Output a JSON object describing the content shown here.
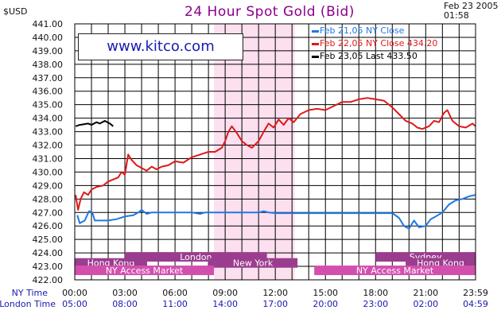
{
  "header": {
    "title": "24 Hour Spot Gold (Bid)",
    "unit": "$USD",
    "date": "Feb 23 2005",
    "time": "01:58"
  },
  "site": "www.kitco.com",
  "chart_data": {
    "type": "line",
    "title": "24 Hour Spot Gold (Bid)",
    "ylabel": "$USD",
    "ylim": [
      422.0,
      441.0
    ],
    "y_ticks": [
      "441.00",
      "440.00",
      "439.00",
      "438.00",
      "437.00",
      "436.00",
      "435.00",
      "434.00",
      "433.00",
      "432.00",
      "431.00",
      "430.00",
      "429.00",
      "428.00",
      "427.00",
      "426.00",
      "425.00",
      "424.00",
      "423.00",
      "422.00"
    ],
    "x_ticks": {
      "row_labels": [
        "NY Time",
        "London Time"
      ],
      "ny": [
        "00:00",
        "03:00",
        "06:00",
        "09:00",
        "12:00",
        "15:00",
        "18:00",
        "21:00",
        "23:59"
      ],
      "london": [
        "05:00",
        "08:00",
        "11:00",
        "14:00",
        "17:00",
        "20:00",
        "23:00",
        "02:00",
        "04:59"
      ],
      "hours": [
        0,
        3,
        6,
        9,
        12,
        15,
        18,
        21,
        23.983
      ]
    },
    "grid": true,
    "shaded_hours": [
      8.33,
      13.17
    ],
    "series": [
      {
        "name": "Feb 21,05 NY Close",
        "legend_label": "Feb 21,05  NY  Close",
        "color": "#1e78e6",
        "points": [
          [
            0.15,
            426.8
          ],
          [
            0.3,
            426.2
          ],
          [
            0.6,
            426.4
          ],
          [
            0.85,
            427.1
          ],
          [
            1.05,
            427.0
          ],
          [
            1.2,
            426.4
          ],
          [
            1.5,
            426.4
          ],
          [
            2.0,
            426.4
          ],
          [
            2.5,
            426.5
          ],
          [
            3.0,
            426.7
          ],
          [
            3.5,
            426.8
          ],
          [
            3.8,
            427.0
          ],
          [
            4.0,
            427.2
          ],
          [
            4.3,
            426.9
          ],
          [
            4.6,
            427.0
          ],
          [
            5.0,
            427.0
          ],
          [
            5.5,
            427.0
          ],
          [
            6.0,
            427.0
          ],
          [
            6.5,
            427.0
          ],
          [
            7.0,
            427.0
          ],
          [
            7.5,
            426.9
          ],
          [
            7.8,
            427.0
          ],
          [
            8.0,
            427.0
          ],
          [
            9.0,
            427.0
          ],
          [
            10.0,
            427.0
          ],
          [
            11.0,
            427.0
          ],
          [
            11.3,
            427.1
          ],
          [
            11.6,
            427.0
          ],
          [
            12.0,
            426.95
          ],
          [
            13.0,
            426.95
          ],
          [
            14.0,
            426.95
          ],
          [
            15.0,
            426.95
          ],
          [
            16.0,
            426.95
          ],
          [
            17.0,
            426.95
          ],
          [
            18.0,
            426.95
          ],
          [
            19.0,
            426.95
          ],
          [
            19.4,
            426.6
          ],
          [
            19.7,
            426.0
          ],
          [
            20.0,
            425.8
          ],
          [
            20.3,
            426.4
          ],
          [
            20.6,
            425.9
          ],
          [
            21.0,
            426.0
          ],
          [
            21.3,
            426.5
          ],
          [
            21.6,
            426.7
          ],
          [
            22.0,
            427.0
          ],
          [
            22.4,
            427.6
          ],
          [
            22.8,
            427.9
          ],
          [
            23.2,
            428.0
          ],
          [
            23.6,
            428.2
          ],
          [
            23.98,
            428.3
          ]
        ]
      },
      {
        "name": "Feb 22,05 NY Close",
        "legend_label": "Feb 22,05  NY  Close  434.20",
        "color": "#e01818",
        "points": [
          [
            0.05,
            428.3
          ],
          [
            0.2,
            427.2
          ],
          [
            0.35,
            428.0
          ],
          [
            0.55,
            428.5
          ],
          [
            0.8,
            428.3
          ],
          [
            1.0,
            428.7
          ],
          [
            1.3,
            428.9
          ],
          [
            1.7,
            429.0
          ],
          [
            2.0,
            429.3
          ],
          [
            2.4,
            429.5
          ],
          [
            2.6,
            429.6
          ],
          [
            2.8,
            430.0
          ],
          [
            3.0,
            429.8
          ],
          [
            3.2,
            431.3
          ],
          [
            3.4,
            430.9
          ],
          [
            3.7,
            430.5
          ],
          [
            4.0,
            430.3
          ],
          [
            4.3,
            430.1
          ],
          [
            4.6,
            430.4
          ],
          [
            4.9,
            430.2
          ],
          [
            5.2,
            430.4
          ],
          [
            5.6,
            430.5
          ],
          [
            6.0,
            430.8
          ],
          [
            6.5,
            430.7
          ],
          [
            7.0,
            431.1
          ],
          [
            7.5,
            431.3
          ],
          [
            8.0,
            431.5
          ],
          [
            8.4,
            431.5
          ],
          [
            8.8,
            431.8
          ],
          [
            9.0,
            432.3
          ],
          [
            9.2,
            433.0
          ],
          [
            9.4,
            433.4
          ],
          [
            9.7,
            432.9
          ],
          [
            10.0,
            432.3
          ],
          [
            10.3,
            432.0
          ],
          [
            10.6,
            431.8
          ],
          [
            11.0,
            432.3
          ],
          [
            11.4,
            433.2
          ],
          [
            11.6,
            433.6
          ],
          [
            11.9,
            433.3
          ],
          [
            12.2,
            433.9
          ],
          [
            12.5,
            433.5
          ],
          [
            12.8,
            434.0
          ],
          [
            13.1,
            433.7
          ],
          [
            13.5,
            434.3
          ],
          [
            14.0,
            434.6
          ],
          [
            14.5,
            434.7
          ],
          [
            15.0,
            434.6
          ],
          [
            15.5,
            434.9
          ],
          [
            16.0,
            435.2
          ],
          [
            16.5,
            435.2
          ],
          [
            17.0,
            435.4
          ],
          [
            17.5,
            435.5
          ],
          [
            18.0,
            435.4
          ],
          [
            18.5,
            435.3
          ],
          [
            19.0,
            434.8
          ],
          [
            19.4,
            434.3
          ],
          [
            19.8,
            433.8
          ],
          [
            20.2,
            433.6
          ],
          [
            20.5,
            433.3
          ],
          [
            20.8,
            433.2
          ],
          [
            21.2,
            433.4
          ],
          [
            21.5,
            433.8
          ],
          [
            21.8,
            433.7
          ],
          [
            22.1,
            434.4
          ],
          [
            22.3,
            434.6
          ],
          [
            22.6,
            433.8
          ],
          [
            23.0,
            433.4
          ],
          [
            23.4,
            433.3
          ],
          [
            23.8,
            433.6
          ],
          [
            23.98,
            433.4
          ]
        ]
      },
      {
        "name": "Feb 23,05 Last",
        "legend_label": "Feb 23,05  Last  433.50",
        "color": "#000000",
        "points": [
          [
            0.05,
            433.4
          ],
          [
            0.3,
            433.5
          ],
          [
            0.55,
            433.55
          ],
          [
            0.8,
            433.6
          ],
          [
            1.0,
            433.5
          ],
          [
            1.3,
            433.7
          ],
          [
            1.5,
            433.6
          ],
          [
            1.8,
            433.8
          ],
          [
            2.1,
            433.6
          ],
          [
            2.3,
            433.4
          ]
        ]
      }
    ],
    "sessions": [
      {
        "label": "Hong  Kong",
        "start": 0,
        "end": 4.33,
        "color": "#9b3d8f"
      },
      {
        "label": "London",
        "start": 3.0,
        "end": 11.5,
        "color": "#9b3d8f"
      },
      {
        "label": "New  York",
        "start": 8.0,
        "end": 13.33,
        "color": "#9b3d8f"
      },
      {
        "label": "Sydney",
        "start": 18.0,
        "end": 23.98,
        "color": "#9b3d8f"
      },
      {
        "label": "Hong  Kong",
        "start": 19.8,
        "end": 23.98,
        "color": "#9b3d8f"
      },
      {
        "label": "NY  Access  Market",
        "start": 0,
        "end": 8.33,
        "color": "#d34fae"
      },
      {
        "label": "NY  Access  Market",
        "start": 14.33,
        "end": 23.98,
        "color": "#d34fae"
      }
    ]
  }
}
